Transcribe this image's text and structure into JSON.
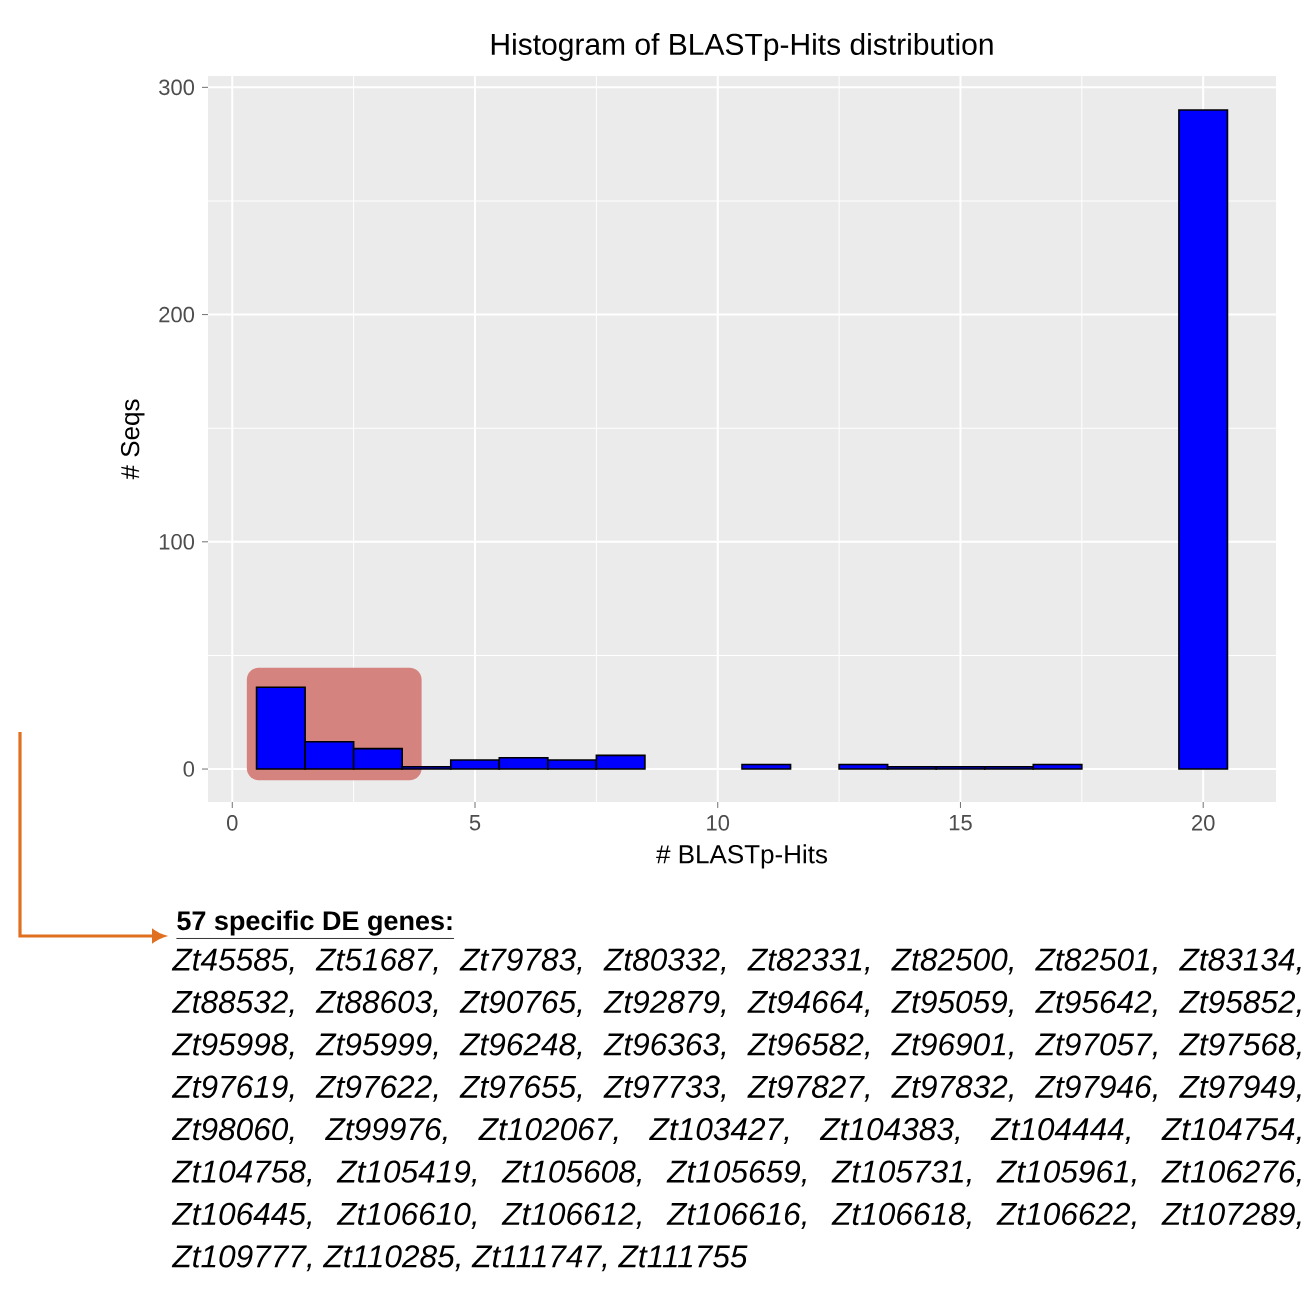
{
  "chart_data": {
    "type": "histogram",
    "title": "Histogram of BLASTp-Hits distribution",
    "xlabel": "# BLASTp-Hits",
    "ylabel": "# Seqs",
    "bins": [
      0.5,
      1.5,
      2.5,
      3.5,
      4.5,
      5.5,
      6.5,
      7.5,
      8.5,
      9.5,
      10.5,
      11.5,
      12.5,
      13.5,
      14.5,
      15.5,
      16.5,
      17.5,
      18.5,
      19.5,
      20.5
    ],
    "values": [
      36,
      12,
      9,
      1,
      4,
      5,
      4,
      6,
      0,
      0,
      2,
      0,
      2,
      1,
      1,
      1,
      2,
      0,
      0,
      290
    ],
    "color": "#0000ff",
    "xlim": [
      -0.5,
      21.5
    ],
    "ylim": [
      -14.5,
      305
    ],
    "xticks": [
      0,
      5,
      10,
      15,
      20
    ],
    "yticks": [
      0,
      100,
      200,
      300
    ],
    "grid": true,
    "bands": [
      {
        "axis": "x",
        "from": 0.3,
        "to": 3.9,
        "color": "#d4837f"
      }
    ],
    "annotations": [
      "57 specific DE genes:",
      "Zt45585, Zt51687, Zt79783, Zt80332, Zt82331, Zt82500, Zt82501, Zt83134, Zt88532, Zt88603, Zt90765, Zt92879, Zt94664, Zt95059, Zt95642, Zt95852, Zt95998, Zt95999, Zt96248, Zt96363, Zt96582, Zt96901, Zt97057, Zt97568, Zt97619, Zt97622, Zt97655, Zt97733, Zt97827, Zt97832, Zt97946, Zt97949, Zt98060, Zt99976, Zt102067, Zt103427, Zt104383, Zt104444, Zt104754, Zt104758, Zt105419, Zt105608, Zt105659, Zt105731, Zt105961, Zt106276, Zt106445, Zt106610, Zt106612, Zt106616, Zt106618, Zt106622, Zt107289, Zt109777, Zt110285, Zt111747, Zt111755"
    ]
  }
}
